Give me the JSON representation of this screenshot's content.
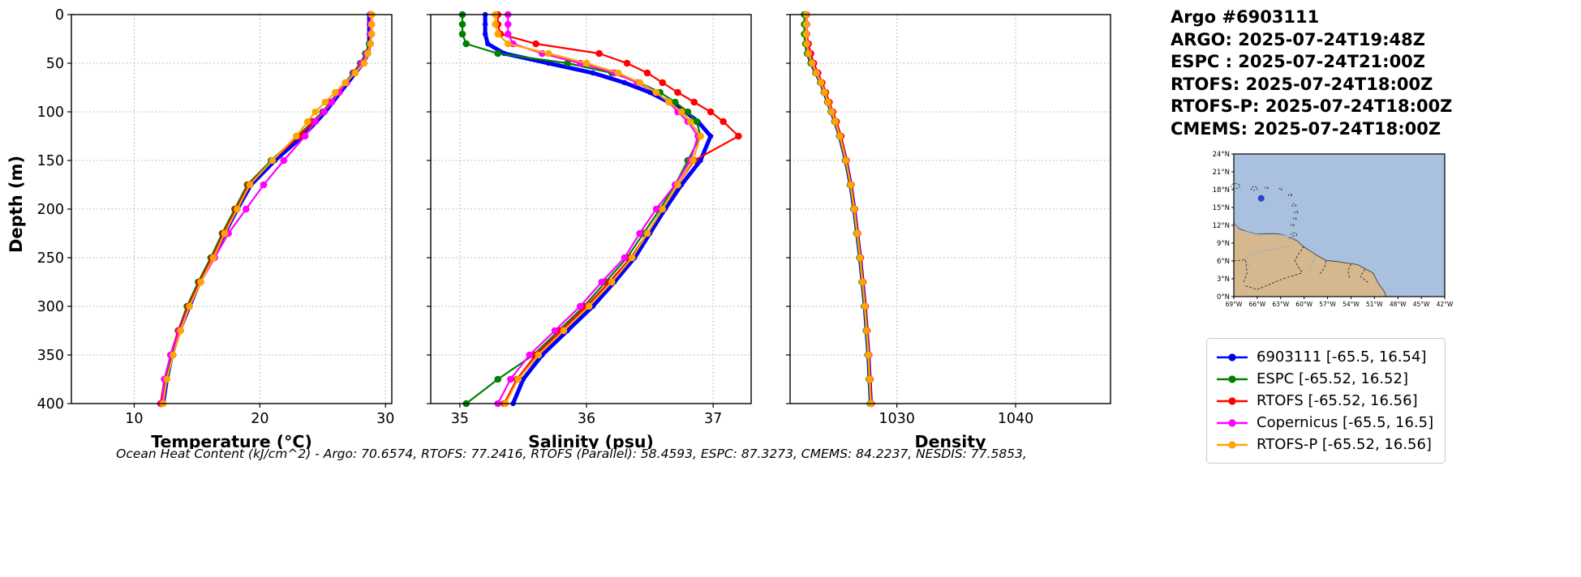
{
  "info": {
    "lines": [
      "Argo #6903111",
      "ARGO: 2025-07-24T19:48Z",
      "ESPC : 2025-07-24T21:00Z",
      "RTOFS: 2025-07-24T18:00Z",
      "RTOFS-P: 2025-07-24T18:00Z",
      "CMEMS: 2025-07-24T18:00Z"
    ]
  },
  "footer": {
    "text": "Ocean Heat Content (kJ/cm^2) - Argo: 70.6574,  RTOFS: 77.2416,  RTOFS (Parallel): 58.4593,  ESPC: 87.3273,  CMEMS: 84.2237,  NESDIS: 77.5853,"
  },
  "legend": {
    "items": [
      {
        "label": "6903111 [-65.5, 16.54]",
        "color": "#0000ff"
      },
      {
        "label": "ESPC [-65.52, 16.52]",
        "color": "#008000"
      },
      {
        "label": "RTOFS [-65.52, 16.56]",
        "color": "#ff0000"
      },
      {
        "label": "Copernicus [-65.5, 16.5]",
        "color": "#ff00ff"
      },
      {
        "label": "RTOFS-P [-65.52, 16.56]",
        "color": "#ffa500"
      }
    ]
  },
  "axes": {
    "ylabel": "Depth (m)",
    "ylim": [
      0,
      400
    ],
    "yticks": [
      0,
      50,
      100,
      150,
      200,
      250,
      300,
      350,
      400
    ],
    "depths": [
      0,
      10,
      20,
      30,
      40,
      50,
      60,
      70,
      80,
      90,
      100,
      110,
      125,
      150,
      175,
      200,
      225,
      250,
      275,
      300,
      325,
      350,
      375,
      400
    ]
  },
  "chart_data": [
    {
      "type": "line",
      "xlabel": "Temperature (°C)",
      "xlim": [
        5,
        30.5
      ],
      "xticks": [
        10,
        20,
        30
      ],
      "show_y_ticks": true,
      "series": [
        {
          "name": "6903111",
          "color": "#0000ff",
          "values": [
            28.7,
            28.7,
            28.7,
            28.7,
            28.6,
            28.2,
            27.6,
            27.0,
            26.4,
            25.8,
            25.2,
            24.5,
            23.4,
            21.2,
            19.3,
            18.2,
            17.2,
            16.2,
            15.2,
            14.4,
            13.6,
            13.0,
            12.6,
            12.3
          ]
        },
        {
          "name": "ESPC",
          "color": "#008000",
          "values": [
            28.8,
            28.8,
            28.8,
            28.7,
            28.4,
            28.0,
            27.4,
            26.8,
            26.2,
            25.6,
            25.0,
            24.2,
            23.0,
            20.9,
            19.0,
            18.0,
            17.0,
            16.1,
            15.1,
            14.2,
            13.5,
            12.9,
            12.5,
            12.2
          ]
        },
        {
          "name": "RTOFS",
          "color": "#ff0000",
          "values": [
            28.9,
            28.9,
            28.9,
            28.8,
            28.5,
            28.1,
            27.5,
            26.9,
            26.3,
            25.7,
            25.1,
            24.3,
            23.1,
            21.0,
            19.1,
            18.1,
            17.1,
            16.2,
            15.2,
            14.3,
            13.5,
            12.9,
            12.4,
            12.1
          ]
        },
        {
          "name": "Copernicus",
          "color": "#ff00ff",
          "values": [
            28.8,
            28.8,
            28.8,
            28.8,
            28.5,
            28.1,
            27.5,
            26.9,
            26.3,
            25.7,
            25.1,
            24.4,
            23.6,
            21.9,
            20.3,
            18.9,
            17.5,
            16.4,
            15.3,
            14.4,
            13.6,
            12.9,
            12.4,
            12.2
          ]
        },
        {
          "name": "RTOFS-P",
          "color": "#ffa500",
          "values": [
            28.9,
            28.9,
            28.9,
            28.8,
            28.6,
            28.3,
            27.6,
            26.8,
            26.0,
            25.2,
            24.4,
            23.8,
            22.9,
            21.0,
            19.2,
            18.2,
            17.2,
            16.3,
            15.3,
            14.4,
            13.7,
            13.1,
            12.6,
            12.3
          ]
        }
      ]
    },
    {
      "type": "line",
      "xlabel": "Salinity (psu)",
      "xlim": [
        34.77,
        37.3
      ],
      "xticks": [
        35,
        36,
        37
      ],
      "show_y_ticks": false,
      "series": [
        {
          "name": "6903111",
          "color": "#0000ff",
          "values": [
            35.2,
            35.2,
            35.2,
            35.22,
            35.35,
            35.7,
            36.05,
            36.3,
            36.5,
            36.65,
            36.78,
            36.88,
            36.98,
            36.9,
            36.75,
            36.62,
            36.5,
            36.38,
            36.22,
            36.05,
            35.85,
            35.65,
            35.5,
            35.42
          ]
        },
        {
          "name": "ESPC",
          "color": "#008000",
          "values": [
            35.02,
            35.02,
            35.02,
            35.05,
            35.3,
            35.85,
            36.2,
            36.42,
            36.58,
            36.7,
            36.8,
            36.87,
            36.9,
            36.8,
            36.7,
            36.58,
            36.45,
            36.32,
            36.15,
            35.98,
            35.78,
            35.58,
            35.3,
            35.05
          ]
        },
        {
          "name": "RTOFS",
          "color": "#ff0000",
          "values": [
            35.3,
            35.3,
            35.32,
            35.6,
            36.1,
            36.32,
            36.48,
            36.6,
            36.72,
            36.85,
            36.98,
            37.08,
            37.2,
            36.85,
            36.72,
            36.6,
            36.48,
            36.35,
            36.18,
            36.0,
            35.8,
            35.6,
            35.45,
            35.35
          ]
        },
        {
          "name": "Copernicus",
          "color": "#ff00ff",
          "values": [
            35.38,
            35.38,
            35.38,
            35.42,
            35.65,
            35.95,
            36.22,
            36.4,
            36.55,
            36.65,
            36.72,
            36.8,
            36.88,
            36.82,
            36.7,
            36.55,
            36.42,
            36.3,
            36.12,
            35.95,
            35.75,
            35.55,
            35.4,
            35.3
          ]
        },
        {
          "name": "RTOFS-P",
          "color": "#ffa500",
          "values": [
            35.28,
            35.28,
            35.3,
            35.38,
            35.7,
            36.0,
            36.25,
            36.42,
            36.55,
            36.65,
            36.75,
            36.82,
            36.9,
            36.84,
            36.72,
            36.6,
            36.48,
            36.36,
            36.2,
            36.02,
            35.82,
            35.62,
            35.46,
            35.36
          ]
        }
      ]
    },
    {
      "type": "line",
      "xlabel": "Density",
      "xlim": [
        1021,
        1048
      ],
      "xticks": [
        1030,
        1040
      ],
      "show_y_ticks": false,
      "series": [
        {
          "name": "6903111",
          "color": "#0000ff",
          "values": [
            1022.3,
            1022.3,
            1022.3,
            1022.35,
            1022.5,
            1022.8,
            1023.2,
            1023.6,
            1023.9,
            1024.2,
            1024.5,
            1024.8,
            1025.2,
            1025.7,
            1026.1,
            1026.4,
            1026.65,
            1026.9,
            1027.1,
            1027.3,
            1027.45,
            1027.6,
            1027.7,
            1027.8
          ]
        },
        {
          "name": "ESPC",
          "color": "#008000",
          "values": [
            1022.2,
            1022.2,
            1022.2,
            1022.3,
            1022.45,
            1022.75,
            1023.15,
            1023.55,
            1023.85,
            1024.15,
            1024.45,
            1024.75,
            1025.15,
            1025.65,
            1026.05,
            1026.35,
            1026.6,
            1026.85,
            1027.05,
            1027.25,
            1027.4,
            1027.55,
            1027.65,
            1027.75
          ]
        },
        {
          "name": "RTOFS",
          "color": "#ff0000",
          "values": [
            1022.35,
            1022.35,
            1022.4,
            1022.55,
            1022.75,
            1023.0,
            1023.35,
            1023.7,
            1024.0,
            1024.3,
            1024.6,
            1024.9,
            1025.3,
            1025.75,
            1026.15,
            1026.45,
            1026.7,
            1026.95,
            1027.15,
            1027.35,
            1027.5,
            1027.65,
            1027.75,
            1027.85
          ]
        },
        {
          "name": "Copernicus",
          "color": "#ff00ff",
          "values": [
            1022.4,
            1022.4,
            1022.4,
            1022.45,
            1022.6,
            1022.9,
            1023.25,
            1023.6,
            1023.9,
            1024.2,
            1024.5,
            1024.8,
            1025.2,
            1025.7,
            1026.1,
            1026.4,
            1026.65,
            1026.9,
            1027.1,
            1027.3,
            1027.45,
            1027.6,
            1027.7,
            1027.8
          ]
        },
        {
          "name": "RTOFS-P",
          "color": "#ffa500",
          "values": [
            1022.35,
            1022.35,
            1022.35,
            1022.4,
            1022.55,
            1022.85,
            1023.2,
            1023.6,
            1023.9,
            1024.2,
            1024.5,
            1024.8,
            1025.2,
            1025.7,
            1026.1,
            1026.4,
            1026.65,
            1026.9,
            1027.1,
            1027.3,
            1027.45,
            1027.6,
            1027.7,
            1027.8
          ]
        }
      ]
    }
  ],
  "map": {
    "lon_range": [
      -69,
      -42
    ],
    "lat_range": [
      0,
      24
    ],
    "lon_tick_labels": [
      "69°W",
      "66°W",
      "63°W",
      "60°W",
      "57°W",
      "54°W",
      "51°W",
      "48°W",
      "45°W",
      "42°W"
    ],
    "lat_tick_labels": [
      "24°N",
      "21°N",
      "18°N",
      "15°N",
      "12°N",
      "9°N",
      "6°N",
      "3°N",
      "0°N"
    ],
    "ocean_color": "#a9c1de",
    "land_color": "#d6b88e",
    "marker": {
      "lon": -65.5,
      "lat": 16.54,
      "color": "#2b43cf"
    },
    "land": [
      [
        -69,
        12.4
      ],
      [
        -68.3,
        11.4
      ],
      [
        -67.2,
        10.9
      ],
      [
        -66,
        10.5
      ],
      [
        -64.8,
        10.6
      ],
      [
        -63.6,
        10.6
      ],
      [
        -62.7,
        10.4
      ],
      [
        -62.1,
        10.0
      ],
      [
        -61.5,
        9.8
      ],
      [
        -60.8,
        9.3
      ],
      [
        -60.1,
        8.4
      ],
      [
        -59.1,
        7.6
      ],
      [
        -58.3,
        6.9
      ],
      [
        -57.2,
        6.1
      ],
      [
        -55.8,
        5.9
      ],
      [
        -54.4,
        5.6
      ],
      [
        -53.2,
        5.4
      ],
      [
        -52.2,
        4.7
      ],
      [
        -51.2,
        4.0
      ],
      [
        -50.4,
        2.0
      ],
      [
        -49.8,
        1.0
      ],
      [
        -49.5,
        0.0
      ]
    ],
    "borders": [
      [
        [
          -60.0,
          8.5
        ],
        [
          -60.7,
          7.2
        ],
        [
          -61.2,
          6.0
        ],
        [
          -60.7,
          4.9
        ],
        [
          -60.2,
          4.0
        ]
      ],
      [
        [
          -57.2,
          6.0
        ],
        [
          -57.4,
          4.8
        ],
        [
          -58.0,
          3.8
        ]
      ],
      [
        [
          -54.0,
          5.5
        ],
        [
          -54.4,
          4.3
        ],
        [
          -54.2,
          3.2
        ]
      ],
      [
        [
          -52.2,
          4.6
        ],
        [
          -52.8,
          3.4
        ],
        [
          -51.8,
          2.4
        ]
      ],
      [
        [
          -67.5,
          1.8
        ],
        [
          -66.0,
          1.2
        ],
        [
          -64.0,
          2.3
        ],
        [
          -62.7,
          3.0
        ],
        [
          -60.2,
          4.0
        ]
      ],
      [
        [
          -69,
          6.0
        ],
        [
          -67.5,
          6.2
        ],
        [
          -67.3,
          4.0
        ],
        [
          -67.8,
          2.2
        ]
      ]
    ],
    "rivers": [
      [
        [
          -61.8,
          8.6
        ],
        [
          -63.3,
          8.1
        ],
        [
          -64.8,
          7.8
        ],
        [
          -66.2,
          7.4
        ],
        [
          -67.6,
          6.3
        ],
        [
          -67.0,
          5.0
        ]
      ],
      [
        [
          -58.6,
          6.9
        ],
        [
          -58.9,
          5.5
        ],
        [
          -59.5,
          4.5
        ]
      ]
    ],
    "coast_gray": [
      [
        -69,
        12.2
      ],
      [
        -68.3,
        11.2
      ],
      [
        -67.0,
        10.7
      ],
      [
        -65.5,
        10.2
      ],
      [
        -64.0,
        10.4
      ],
      [
        -62.8,
        10.3
      ],
      [
        -62.0,
        9.9
      ]
    ],
    "islands": [
      [
        -68.8,
        18.6,
        3.2
      ],
      [
        -66.4,
        18.2,
        2.3
      ],
      [
        -64.8,
        18.3,
        1.1
      ],
      [
        -63.0,
        18.1,
        1.0
      ],
      [
        -61.8,
        17.1,
        1.2
      ],
      [
        -61.3,
        15.4,
        1.5
      ],
      [
        -61.0,
        14.2,
        1.3
      ],
      [
        -61.2,
        13.15,
        1.1
      ],
      [
        -61.5,
        12.05,
        1.1
      ],
      [
        -61.3,
        10.45,
        2.0
      ]
    ]
  }
}
